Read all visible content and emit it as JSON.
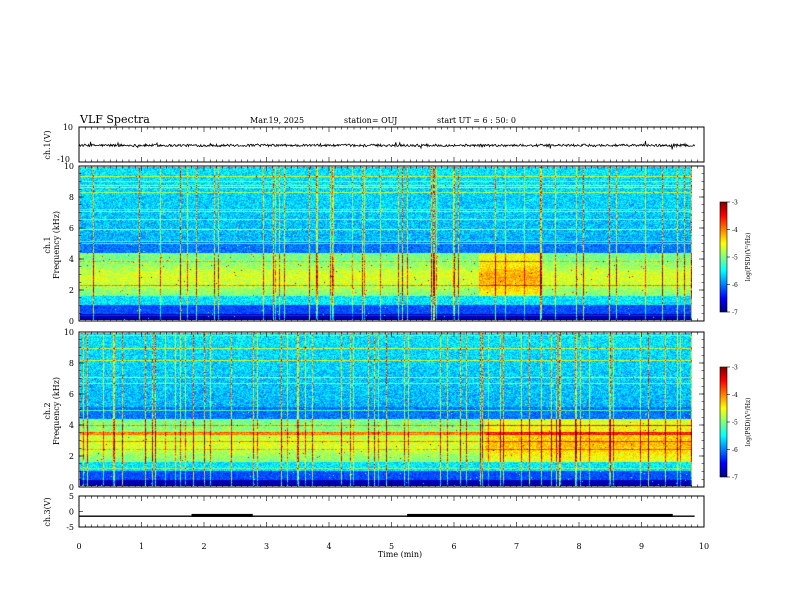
{
  "header": {
    "title": "VLF Spectra",
    "date": "Mar.19, 2025",
    "station": "station= OUJ",
    "start_time": "start UT =  6 : 50: 0"
  },
  "colors": {
    "jet": [
      "#00007f",
      "#0000ff",
      "#007fff",
      "#00ffff",
      "#7fff7f",
      "#ffff00",
      "#ff7f00",
      "#ff0000",
      "#7f0000"
    ]
  },
  "chart_data": [
    {
      "type": "line",
      "panel": "ch1-voltage",
      "ylabel": "ch.1(V)",
      "ylim": [
        -10,
        10
      ],
      "yticks": [
        10,
        -10
      ],
      "xlim": [
        0,
        10
      ],
      "baseline": -0.5
    },
    {
      "type": "heatmap",
      "panel": "ch1-spectrogram",
      "ylabel_top": "ch.1",
      "ylabel": "Frequency (kHz)",
      "ylim": [
        0,
        10
      ],
      "yticks": [
        0,
        2,
        4,
        6,
        8,
        10
      ],
      "xlim": [
        0,
        10
      ],
      "data_end_min": 9.83,
      "colorbar": {
        "label": "log(PSD)(V²/Hz)",
        "ticks": [
          -3,
          -4,
          -5,
          -6,
          -7
        ],
        "range": [
          -7,
          -3
        ]
      }
    },
    {
      "type": "heatmap",
      "panel": "ch2-spectrogram",
      "ylabel_top": "ch.2",
      "ylabel": "Frequency (kHz)",
      "ylim": [
        0,
        10
      ],
      "yticks": [
        0,
        2,
        4,
        6,
        8,
        10
      ],
      "xlim": [
        0,
        10
      ],
      "data_end_min": 9.83,
      "colorbar": {
        "label": "log(PSD)(V²/Hz)",
        "ticks": [
          -3,
          -4,
          -5,
          -6,
          -7
        ],
        "range": [
          -7,
          -3
        ]
      }
    },
    {
      "type": "line",
      "panel": "ch3-voltage",
      "ylabel": "ch.3(V)",
      "ylim": [
        -5,
        5
      ],
      "yticks": [
        5,
        0,
        -5
      ],
      "xlim": [
        0,
        10
      ],
      "xlabel": "Time (min)",
      "xticks": [
        0,
        1,
        2,
        3,
        4,
        5,
        6,
        7,
        8,
        9,
        10
      ],
      "baseline": -1.5,
      "high_segments": [
        [
          1.8,
          2.78
        ],
        [
          5.25,
          9.5
        ]
      ],
      "high_level": -1.1
    }
  ]
}
